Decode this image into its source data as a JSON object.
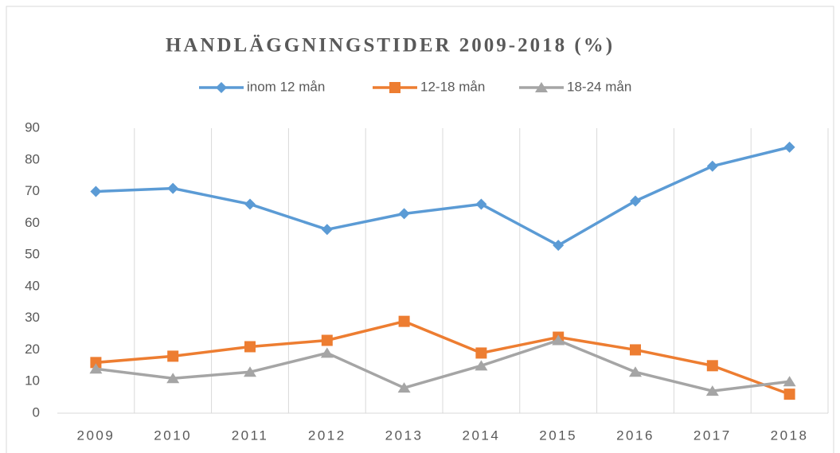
{
  "chart_data": {
    "type": "line",
    "title": "HANDLÄGGNINGSTIDER 2009-2018 (%)",
    "categories": [
      "2009",
      "2010",
      "2011",
      "2012",
      "2013",
      "2014",
      "2015",
      "2016",
      "2017",
      "2018"
    ],
    "series": [
      {
        "name": "inom 12 mån",
        "color": "#5b9bd5",
        "marker": "diamond",
        "values": [
          70,
          71,
          66,
          58,
          63,
          66,
          53,
          67,
          78,
          84
        ]
      },
      {
        "name": "12-18 mån",
        "color": "#ed7d31",
        "marker": "square",
        "values": [
          16,
          18,
          21,
          23,
          29,
          19,
          24,
          20,
          15,
          6
        ]
      },
      {
        "name": "18-24 mån",
        "color": "#a5a5a5",
        "marker": "triangle",
        "values": [
          14,
          11,
          13,
          19,
          8,
          15,
          23,
          13,
          7,
          10
        ]
      }
    ],
    "ylim": [
      0,
      90
    ],
    "yticks": [
      0,
      10,
      20,
      30,
      40,
      50,
      60,
      70,
      80,
      90
    ],
    "grid": "vertical"
  }
}
